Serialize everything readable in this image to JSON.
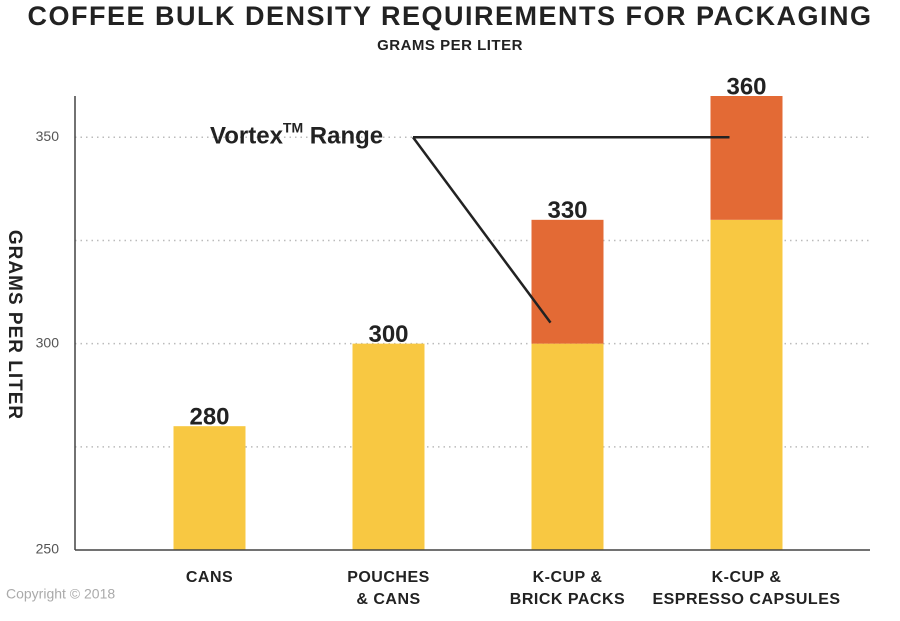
{
  "chart_data": {
    "type": "bar",
    "title": "COFFEE BULK DENSITY REQUIREMENTS FOR PACKAGING",
    "subtitle": "GRAMS PER LITER",
    "y_label": "GRAMS PER LITER",
    "categories": [
      [
        "CANS"
      ],
      [
        "POUCHES",
        "& CANS"
      ],
      [
        "K-CUP &",
        "BRICK PACKS"
      ],
      [
        "K-CUP &",
        "ESPRESSO CAPSULES"
      ]
    ],
    "values": [
      280,
      300,
      330,
      360
    ],
    "range_start": [
      null,
      null,
      300,
      330
    ],
    "color": "#f8c842",
    "range_color": "#e36a35",
    "annotation": {
      "text": "Vortex",
      "mark": "TM",
      "suffix": " Range"
    },
    "ylim": [
      250,
      360
    ],
    "yticks": [
      250,
      300,
      350
    ],
    "minor_gridlines": [
      275,
      325
    ],
    "grid": true,
    "footer": "Copyright © 2018"
  }
}
